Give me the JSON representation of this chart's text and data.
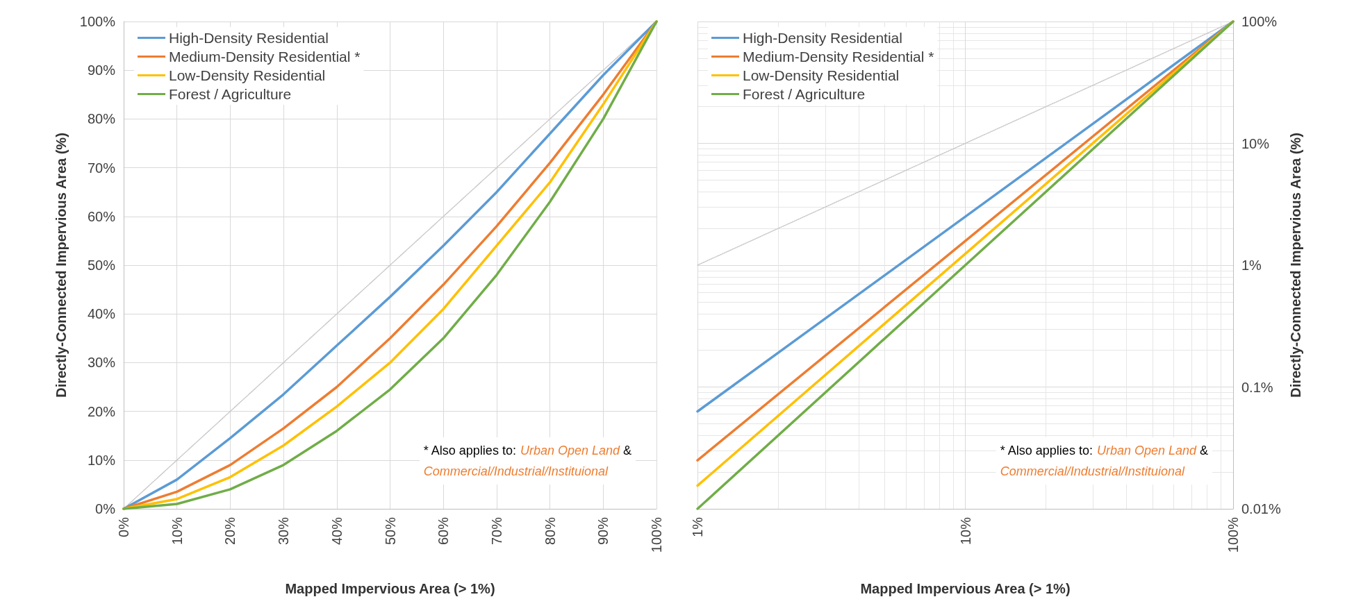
{
  "chart_data": [
    {
      "type": "line",
      "xlabel": "Mapped Impervious Area (> 1%)",
      "ylabel": "Directly-Connected Impervious Area (%)",
      "x": [
        0,
        10,
        20,
        30,
        40,
        50,
        60,
        70,
        80,
        90,
        100
      ],
      "xlim": [
        0,
        100
      ],
      "xticks": [
        {
          "value": 0,
          "label": "0%"
        },
        {
          "value": 10,
          "label": "10%"
        },
        {
          "value": 20,
          "label": "20%"
        },
        {
          "value": 30,
          "label": "30%"
        },
        {
          "value": 40,
          "label": "40%"
        },
        {
          "value": 50,
          "label": "50%"
        },
        {
          "value": 60,
          "label": "60%"
        },
        {
          "value": 70,
          "label": "70%"
        },
        {
          "value": 80,
          "label": "80%"
        },
        {
          "value": 90,
          "label": "90%"
        },
        {
          "value": 100,
          "label": "100%"
        }
      ],
      "ylim": [
        0,
        100
      ],
      "yticks": [
        {
          "value": 0,
          "label": "0%"
        },
        {
          "value": 10,
          "label": "10%"
        },
        {
          "value": 20,
          "label": "20%"
        },
        {
          "value": 30,
          "label": "30%"
        },
        {
          "value": 40,
          "label": "40%"
        },
        {
          "value": 50,
          "label": "50%"
        },
        {
          "value": 60,
          "label": "60%"
        },
        {
          "value": 70,
          "label": "70%"
        },
        {
          "value": 80,
          "label": "80%"
        },
        {
          "value": 90,
          "label": "90%"
        },
        {
          "value": 100,
          "label": "100%"
        }
      ],
      "grid": true,
      "legend": "top left",
      "marker": "none",
      "line_style": "solid",
      "series": [
        {
          "name": "High-Density Residential",
          "color": "#5b9bd5",
          "values": [
            0,
            6,
            14.5,
            23.5,
            33.5,
            43.5,
            54,
            65,
            77,
            89,
            100
          ]
        },
        {
          "name": "Medium-Density Residential *",
          "color": "#ed7d31",
          "values": [
            0,
            3.5,
            9,
            16.5,
            25,
            35,
            46,
            58,
            71,
            85,
            100
          ]
        },
        {
          "name": "Low-Density Residential",
          "color": "#ffc000",
          "values": [
            0,
            2,
            6.5,
            13,
            21,
            30,
            41,
            54,
            67,
            83,
            100
          ]
        },
        {
          "name": "Forest / Agriculture",
          "color": "#70ad47",
          "values": [
            0,
            1,
            4,
            9,
            16,
            24.5,
            35,
            48,
            63,
            80,
            100
          ]
        },
        {
          "color": "#c8c8c8",
          "line_style": "dotted",
          "x": [
            0,
            100
          ],
          "values": [
            0,
            100
          ]
        }
      ],
      "annotations": [
        "* Also applies to: ",
        "Urban Open Land",
        " &",
        "Commercial/Industrial/Instituional"
      ]
    },
    {
      "type": "line",
      "xlabel": "Mapped Impervious Area (> 1%)",
      "ylabel": "Directly-Connected Impervious Area (%)",
      "x": [
        1,
        10,
        100
      ],
      "log": "xy",
      "xlim": [
        1,
        100
      ],
      "xticks": [
        {
          "value": 1,
          "label": "1%"
        },
        {
          "value": 10,
          "label": "10%"
        },
        {
          "value": 100,
          "label": "100%"
        }
      ],
      "ylim": [
        0.01,
        100
      ],
      "yticks": [
        {
          "value": 0.01,
          "label": "0.01%"
        },
        {
          "value": 0.1,
          "label": "0.1%"
        },
        {
          "value": 1,
          "label": "1%"
        },
        {
          "value": 10,
          "label": "10%"
        },
        {
          "value": 100,
          "label": "100%"
        }
      ],
      "grid": true,
      "legend": "top left",
      "marker": "none",
      "line_style": "solid",
      "series": [
        {
          "name": "High-Density Residential",
          "color": "#5b9bd5",
          "values": [
            0.063,
            2.5,
            100
          ]
        },
        {
          "name": "Medium-Density Residential *",
          "color": "#ed7d31",
          "values": [
            0.025,
            1.58,
            100
          ]
        },
        {
          "name": "Low-Density Residential",
          "color": "#ffc000",
          "values": [
            0.0155,
            1.24,
            100
          ]
        },
        {
          "name": "Forest / Agriculture",
          "color": "#70ad47",
          "values": [
            0.01,
            1,
            100
          ]
        },
        {
          "color": "#c8c8c8",
          "line_style": "dotted",
          "x": [
            1,
            100
          ],
          "values": [
            1,
            100
          ]
        }
      ],
      "annotations": [
        "* Also applies to: ",
        "Urban Open Land",
        " &",
        "Commercial/Industrial/Instituional"
      ]
    }
  ]
}
